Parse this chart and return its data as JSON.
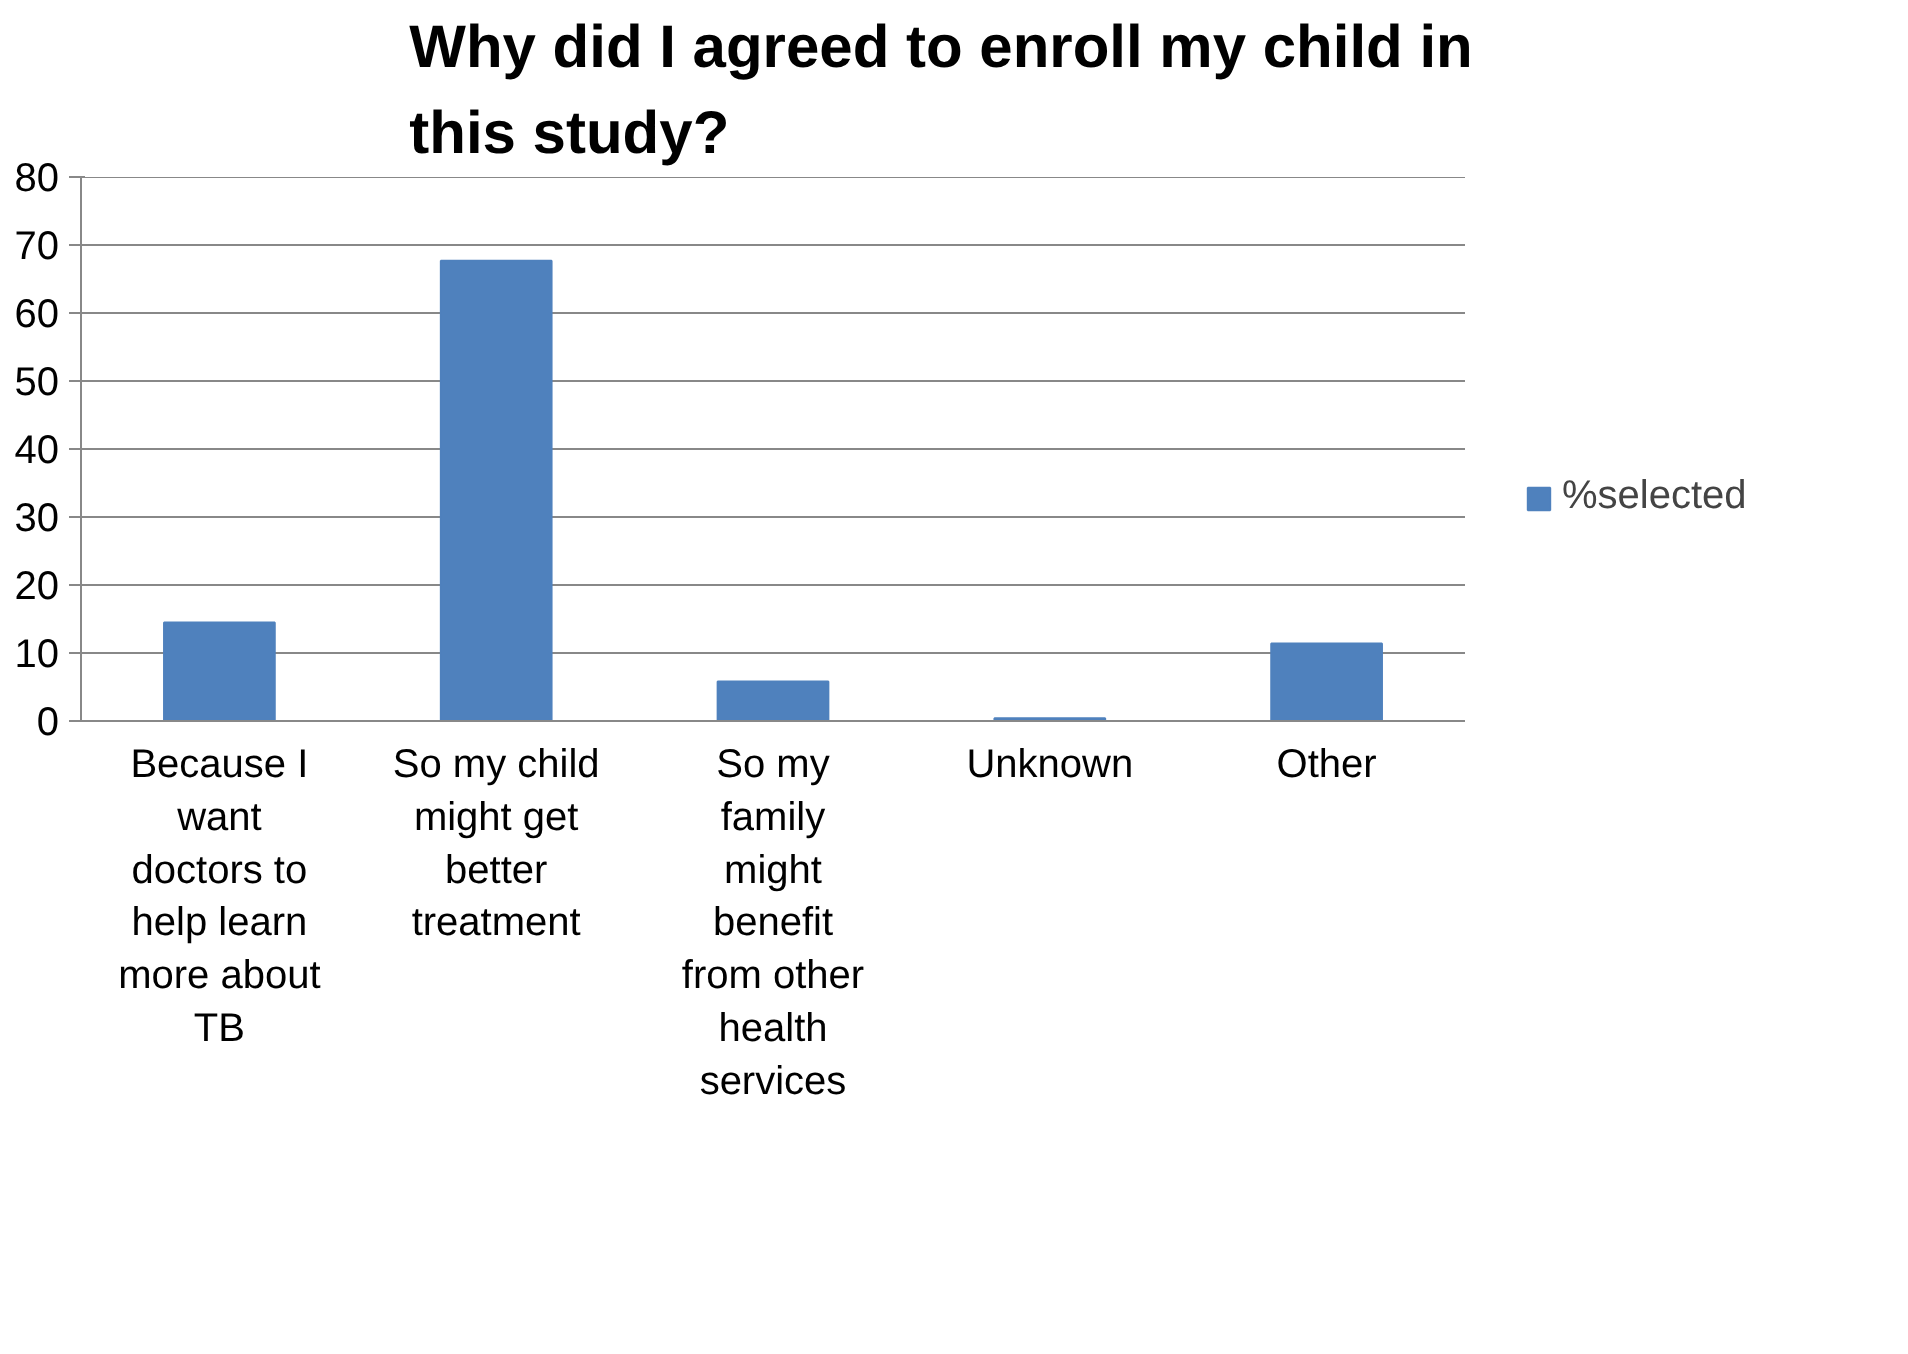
{
  "chart_data": {
    "type": "bar",
    "title": "Why did I agreed to enroll my child in this study?",
    "categories": [
      "Because I want doctors to help learn more about TB",
      "So my child might get better treatment",
      "So my family might benefit from other health services",
      "Unknown",
      "Other"
    ],
    "series": [
      {
        "name": "%selected",
        "color": "#4f81bd",
        "values": [
          14.5,
          67.7,
          5.8,
          0.4,
          11.4
        ]
      }
    ],
    "ylim": [
      0,
      80
    ],
    "yticks": [
      0,
      10,
      20,
      30,
      40,
      50,
      60,
      70,
      80
    ],
    "grid": "y",
    "legend": "right"
  }
}
